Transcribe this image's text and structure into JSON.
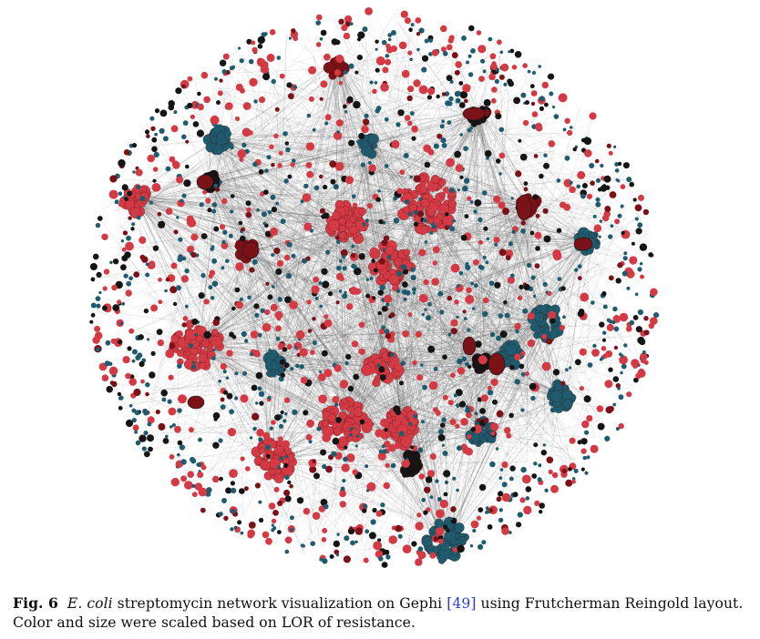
{
  "figure": {
    "colors": {
      "edge": "#6a6a6a",
      "red": "#d43a44",
      "dark_red": "#7a1218",
      "black": "#151515",
      "teal": "#1f5b6e"
    }
  },
  "caption": {
    "label": "Fig. 6",
    "organism": "E. coli",
    "text_before_cite": " streptomycin network visualization on Gephi ",
    "cite_open": "[",
    "cite": "49",
    "cite_close": "]",
    "text_after_cite": " using Frutcherman Reingold layout.",
    "line2": "Color and size were scaled based on LOR of resistance."
  }
}
